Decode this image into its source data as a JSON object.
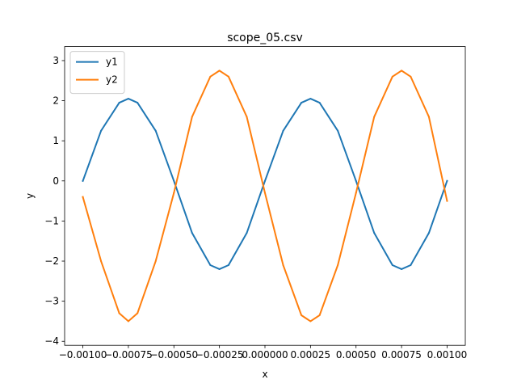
{
  "chart_data": {
    "type": "line",
    "title": "scope_05.csv",
    "xlabel": "x",
    "ylabel": "y",
    "xlim": [
      -0.0011,
      0.0011
    ],
    "ylim": [
      -4.1,
      3.35
    ],
    "x_ticks": [
      -0.001,
      -0.00075,
      -0.0005,
      -0.00025,
      0.0,
      0.00025,
      0.0005,
      0.00075,
      0.001
    ],
    "x_tick_labels": [
      "−0.00100",
      "−0.00075",
      "−0.00050",
      "−0.00025",
      "0.000000",
      "0.00025",
      "0.00050",
      "0.00075",
      "0.00100"
    ],
    "y_ticks": [
      -4,
      -3,
      -2,
      -1,
      0,
      1,
      2,
      3
    ],
    "y_tick_labels": [
      "−4",
      "−3",
      "−2",
      "−1",
      "0",
      "1",
      "2",
      "3"
    ],
    "grid": false,
    "legend_position": "top-left",
    "series": [
      {
        "name": "y1",
        "color": "#1f77b4",
        "x": [
          -0.001,
          -0.0009,
          -0.0008,
          -0.00075,
          -0.0007,
          -0.0006,
          -0.0005,
          -0.0004,
          -0.0003,
          -0.00025,
          -0.0002,
          -0.0001,
          0.0,
          0.0001,
          0.0002,
          0.00025,
          0.0003,
          0.0004,
          0.0005,
          0.0006,
          0.0007,
          0.00075,
          0.0008,
          0.0009,
          0.001
        ],
        "values": [
          0.0,
          1.25,
          1.95,
          2.05,
          1.95,
          1.25,
          0.0,
          -1.3,
          -2.1,
          -2.2,
          -2.1,
          -1.3,
          0.0,
          1.25,
          1.95,
          2.05,
          1.95,
          1.25,
          0.0,
          -1.3,
          -2.1,
          -2.2,
          -2.1,
          -1.3,
          0.0
        ]
      },
      {
        "name": "y2",
        "color": "#ff7f0e",
        "x": [
          -0.001,
          -0.0009,
          -0.0008,
          -0.00075,
          -0.0007,
          -0.0006,
          -0.0005,
          -0.0004,
          -0.0003,
          -0.00025,
          -0.0002,
          -0.0001,
          0.0,
          0.0001,
          0.0002,
          0.00025,
          0.0003,
          0.0004,
          0.0005,
          0.0006,
          0.0007,
          0.00075,
          0.0008,
          0.0009,
          0.001
        ],
        "values": [
          -0.4,
          -2.0,
          -3.3,
          -3.5,
          -3.3,
          -2.0,
          -0.3,
          1.6,
          2.6,
          2.75,
          2.6,
          1.6,
          -0.3,
          -2.1,
          -3.35,
          -3.5,
          -3.35,
          -2.1,
          -0.3,
          1.6,
          2.6,
          2.75,
          2.6,
          1.6,
          -0.5
        ]
      }
    ]
  }
}
